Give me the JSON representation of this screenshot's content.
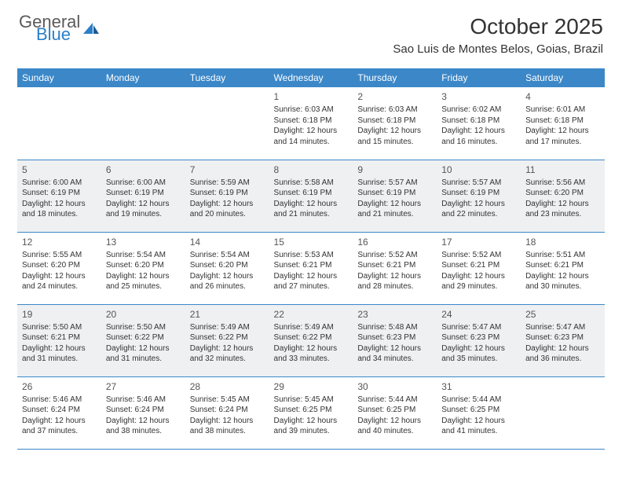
{
  "logo": {
    "general": "General",
    "blue": "Blue"
  },
  "title": "October 2025",
  "location": "Sao Luis de Montes Belos, Goias, Brazil",
  "weekdays": [
    "Sunday",
    "Monday",
    "Tuesday",
    "Wednesday",
    "Thursday",
    "Friday",
    "Saturday"
  ],
  "colors": {
    "header_bg": "#3b87c8",
    "header_text": "#ffffff",
    "alt_row_bg": "#eef0f2",
    "border": "#3b87c8",
    "text": "#333333",
    "logo_gray": "#5a5a5a",
    "logo_blue": "#2a7fc9"
  },
  "weeks": [
    {
      "alt": false,
      "days": [
        null,
        null,
        null,
        {
          "n": "1",
          "sunrise": "Sunrise: 6:03 AM",
          "sunset": "Sunset: 6:18 PM",
          "daylight": "Daylight: 12 hours and 14 minutes."
        },
        {
          "n": "2",
          "sunrise": "Sunrise: 6:03 AM",
          "sunset": "Sunset: 6:18 PM",
          "daylight": "Daylight: 12 hours and 15 minutes."
        },
        {
          "n": "3",
          "sunrise": "Sunrise: 6:02 AM",
          "sunset": "Sunset: 6:18 PM",
          "daylight": "Daylight: 12 hours and 16 minutes."
        },
        {
          "n": "4",
          "sunrise": "Sunrise: 6:01 AM",
          "sunset": "Sunset: 6:18 PM",
          "daylight": "Daylight: 12 hours and 17 minutes."
        }
      ]
    },
    {
      "alt": true,
      "days": [
        {
          "n": "5",
          "sunrise": "Sunrise: 6:00 AM",
          "sunset": "Sunset: 6:19 PM",
          "daylight": "Daylight: 12 hours and 18 minutes."
        },
        {
          "n": "6",
          "sunrise": "Sunrise: 6:00 AM",
          "sunset": "Sunset: 6:19 PM",
          "daylight": "Daylight: 12 hours and 19 minutes."
        },
        {
          "n": "7",
          "sunrise": "Sunrise: 5:59 AM",
          "sunset": "Sunset: 6:19 PM",
          "daylight": "Daylight: 12 hours and 20 minutes."
        },
        {
          "n": "8",
          "sunrise": "Sunrise: 5:58 AM",
          "sunset": "Sunset: 6:19 PM",
          "daylight": "Daylight: 12 hours and 21 minutes."
        },
        {
          "n": "9",
          "sunrise": "Sunrise: 5:57 AM",
          "sunset": "Sunset: 6:19 PM",
          "daylight": "Daylight: 12 hours and 21 minutes."
        },
        {
          "n": "10",
          "sunrise": "Sunrise: 5:57 AM",
          "sunset": "Sunset: 6:19 PM",
          "daylight": "Daylight: 12 hours and 22 minutes."
        },
        {
          "n": "11",
          "sunrise": "Sunrise: 5:56 AM",
          "sunset": "Sunset: 6:20 PM",
          "daylight": "Daylight: 12 hours and 23 minutes."
        }
      ]
    },
    {
      "alt": false,
      "days": [
        {
          "n": "12",
          "sunrise": "Sunrise: 5:55 AM",
          "sunset": "Sunset: 6:20 PM",
          "daylight": "Daylight: 12 hours and 24 minutes."
        },
        {
          "n": "13",
          "sunrise": "Sunrise: 5:54 AM",
          "sunset": "Sunset: 6:20 PM",
          "daylight": "Daylight: 12 hours and 25 minutes."
        },
        {
          "n": "14",
          "sunrise": "Sunrise: 5:54 AM",
          "sunset": "Sunset: 6:20 PM",
          "daylight": "Daylight: 12 hours and 26 minutes."
        },
        {
          "n": "15",
          "sunrise": "Sunrise: 5:53 AM",
          "sunset": "Sunset: 6:21 PM",
          "daylight": "Daylight: 12 hours and 27 minutes."
        },
        {
          "n": "16",
          "sunrise": "Sunrise: 5:52 AM",
          "sunset": "Sunset: 6:21 PM",
          "daylight": "Daylight: 12 hours and 28 minutes."
        },
        {
          "n": "17",
          "sunrise": "Sunrise: 5:52 AM",
          "sunset": "Sunset: 6:21 PM",
          "daylight": "Daylight: 12 hours and 29 minutes."
        },
        {
          "n": "18",
          "sunrise": "Sunrise: 5:51 AM",
          "sunset": "Sunset: 6:21 PM",
          "daylight": "Daylight: 12 hours and 30 minutes."
        }
      ]
    },
    {
      "alt": true,
      "days": [
        {
          "n": "19",
          "sunrise": "Sunrise: 5:50 AM",
          "sunset": "Sunset: 6:21 PM",
          "daylight": "Daylight: 12 hours and 31 minutes."
        },
        {
          "n": "20",
          "sunrise": "Sunrise: 5:50 AM",
          "sunset": "Sunset: 6:22 PM",
          "daylight": "Daylight: 12 hours and 31 minutes."
        },
        {
          "n": "21",
          "sunrise": "Sunrise: 5:49 AM",
          "sunset": "Sunset: 6:22 PM",
          "daylight": "Daylight: 12 hours and 32 minutes."
        },
        {
          "n": "22",
          "sunrise": "Sunrise: 5:49 AM",
          "sunset": "Sunset: 6:22 PM",
          "daylight": "Daylight: 12 hours and 33 minutes."
        },
        {
          "n": "23",
          "sunrise": "Sunrise: 5:48 AM",
          "sunset": "Sunset: 6:23 PM",
          "daylight": "Daylight: 12 hours and 34 minutes."
        },
        {
          "n": "24",
          "sunrise": "Sunrise: 5:47 AM",
          "sunset": "Sunset: 6:23 PM",
          "daylight": "Daylight: 12 hours and 35 minutes."
        },
        {
          "n": "25",
          "sunrise": "Sunrise: 5:47 AM",
          "sunset": "Sunset: 6:23 PM",
          "daylight": "Daylight: 12 hours and 36 minutes."
        }
      ]
    },
    {
      "alt": false,
      "days": [
        {
          "n": "26",
          "sunrise": "Sunrise: 5:46 AM",
          "sunset": "Sunset: 6:24 PM",
          "daylight": "Daylight: 12 hours and 37 minutes."
        },
        {
          "n": "27",
          "sunrise": "Sunrise: 5:46 AM",
          "sunset": "Sunset: 6:24 PM",
          "daylight": "Daylight: 12 hours and 38 minutes."
        },
        {
          "n": "28",
          "sunrise": "Sunrise: 5:45 AM",
          "sunset": "Sunset: 6:24 PM",
          "daylight": "Daylight: 12 hours and 38 minutes."
        },
        {
          "n": "29",
          "sunrise": "Sunrise: 5:45 AM",
          "sunset": "Sunset: 6:25 PM",
          "daylight": "Daylight: 12 hours and 39 minutes."
        },
        {
          "n": "30",
          "sunrise": "Sunrise: 5:44 AM",
          "sunset": "Sunset: 6:25 PM",
          "daylight": "Daylight: 12 hours and 40 minutes."
        },
        {
          "n": "31",
          "sunrise": "Sunrise: 5:44 AM",
          "sunset": "Sunset: 6:25 PM",
          "daylight": "Daylight: 12 hours and 41 minutes."
        },
        null
      ]
    }
  ]
}
